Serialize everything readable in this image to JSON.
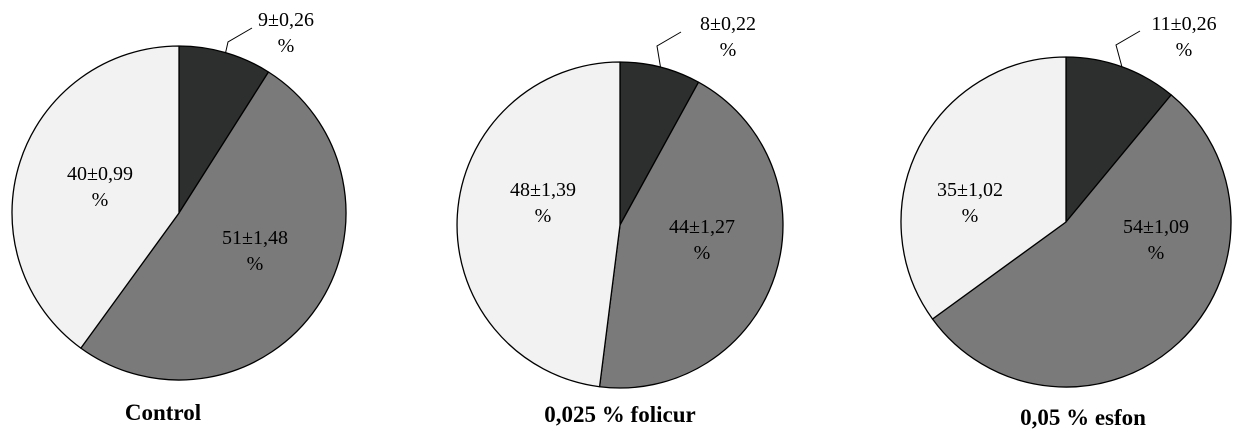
{
  "colors": {
    "slice_dark": "#2d2f2e",
    "slice_medium": "#7a7a7a",
    "slice_light": "#f2f2f2",
    "outline": "#000000"
  },
  "chart_data": [
    {
      "type": "pie",
      "title": "Control",
      "values": [
        9,
        51,
        40
      ],
      "labels": [
        "9±0,26\n%",
        "51±1,48\n%",
        "40±0,99\n%"
      ]
    },
    {
      "type": "pie",
      "title": "0,025 % folicur",
      "values": [
        8,
        44,
        48
      ],
      "labels": [
        "8±0,22\n%",
        "44±1,27\n%",
        "48±1,39\n%"
      ]
    },
    {
      "type": "pie",
      "title": "0,05 % esfon",
      "values": [
        11,
        54,
        35
      ],
      "labels": [
        "11±0,26\n%",
        "54±1,09\n%",
        "35±1,02\n%"
      ]
    }
  ]
}
